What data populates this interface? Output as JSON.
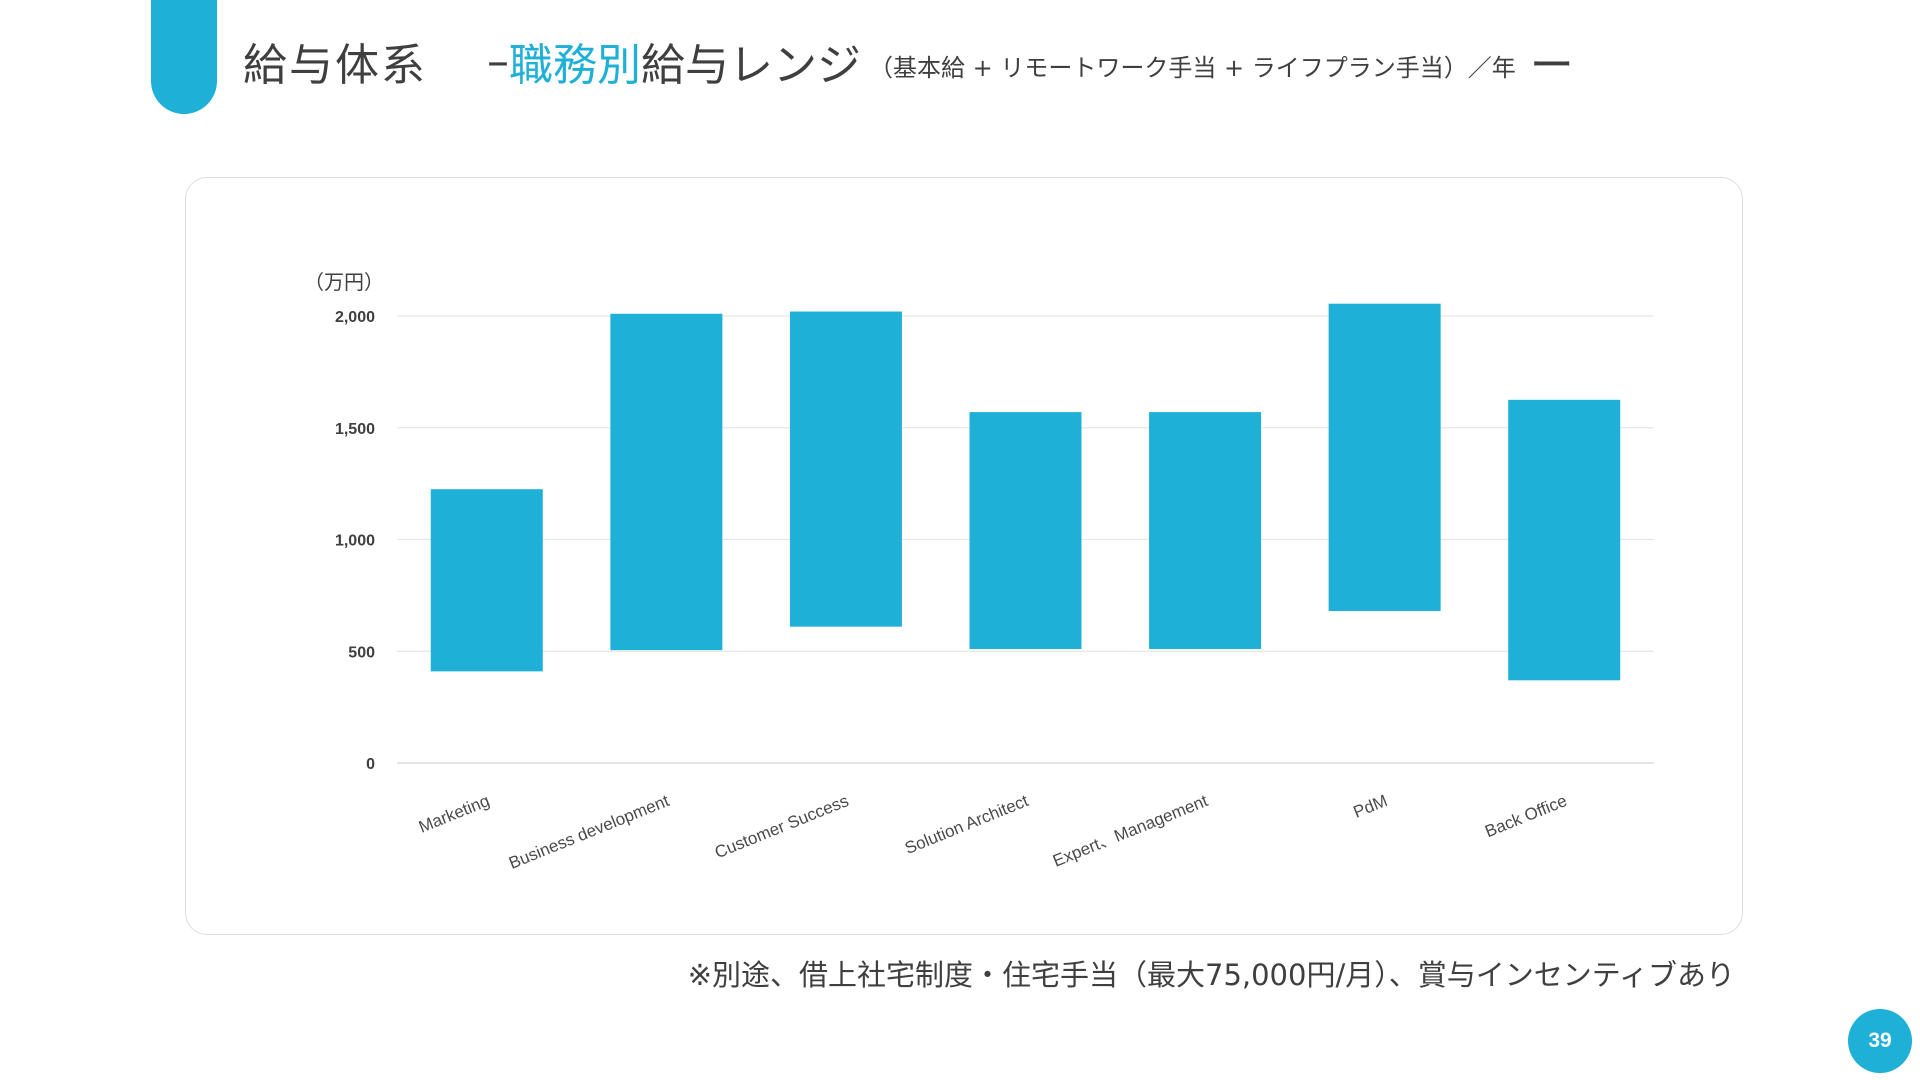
{
  "slide": {
    "title_main": "給与体系",
    "title_dash": "–",
    "title_accent": "職務別",
    "title_rest": "給与レンジ",
    "title_sub": "（基本給 + リモートワーク手当 + ライフプラン手当）／年",
    "title_end": "ー",
    "footnote": "※別途、借上社宅制度・住宅手当（最大75,000円/月）、賞与インセンティブあり",
    "page_number": "39",
    "accent_color": "#1fb0d7"
  },
  "chart_data": {
    "type": "bar",
    "subtype": "floating-range",
    "unit_label": "（万円）",
    "categories": [
      "Marketing",
      "Business development",
      "Customer Success",
      "Solution Architect",
      "Expert、Management",
      "PdM",
      "Back Office"
    ],
    "series": [
      {
        "low": [
          410,
          505,
          610,
          510,
          510,
          680,
          370
        ],
        "high": [
          1225,
          2010,
          2020,
          1570,
          1570,
          2055,
          1625
        ]
      }
    ],
    "y_ticks": [
      "0",
      "500",
      "1,000",
      "1,500",
      "2,000"
    ],
    "ylim": [
      0,
      2000
    ],
    "grid": true,
    "bar_color": "#1fb0d7",
    "legend": "none"
  }
}
